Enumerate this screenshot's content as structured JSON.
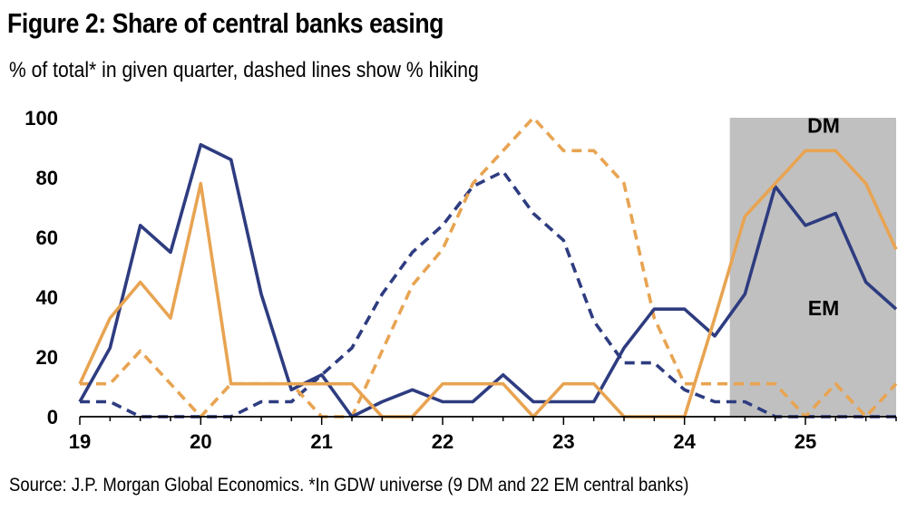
{
  "header": {
    "title": "Figure 2: Share of central banks easing",
    "subtitle": "% of total* in given quarter, dashed lines show % hiking"
  },
  "footer": {
    "source": "Source: J.P. Morgan Global Economics. *In GDW universe (9 DM and 22 EM central banks)"
  },
  "colors": {
    "em": "#2E3C80",
    "dm": "#E8A452",
    "shade": "#C0C0C0"
  },
  "chart_data": {
    "type": "line",
    "title": "Figure 2: Share of central banks easing",
    "subtitle": "% of total* in given quarter, dashed lines show % hiking",
    "xlabel": "",
    "ylabel": "",
    "xlim": [
      19,
      25.75
    ],
    "ylim": [
      0,
      100
    ],
    "x_ticks": [
      19,
      20,
      21,
      22,
      23,
      24,
      25
    ],
    "y_ticks": [
      0,
      20,
      40,
      60,
      80,
      100
    ],
    "grid": false,
    "shaded_region": [
      24.375,
      25.75
    ],
    "x": [
      19.0,
      19.25,
      19.5,
      19.75,
      20.0,
      20.25,
      20.5,
      20.75,
      21.0,
      21.25,
      21.5,
      21.75,
      22.0,
      22.25,
      22.5,
      22.75,
      23.0,
      23.25,
      23.5,
      23.75,
      24.0,
      24.25,
      24.5,
      24.75,
      25.0,
      25.25,
      25.5,
      25.75
    ],
    "series": [
      {
        "name": "EM",
        "style": "solid",
        "color": "#2E3C80",
        "values": [
          5,
          23,
          64,
          55,
          91,
          86,
          41,
          9,
          14,
          0,
          5,
          9,
          5,
          5,
          14,
          5,
          5,
          5,
          23,
          36,
          36,
          27,
          41,
          77,
          64,
          68,
          45,
          36
        ]
      },
      {
        "name": "DM",
        "style": "solid",
        "color": "#E8A452",
        "values": [
          11,
          33,
          45,
          33,
          78,
          11,
          11,
          11,
          11,
          11,
          0,
          0,
          11,
          11,
          11,
          0,
          11,
          11,
          0,
          0,
          0,
          33,
          67,
          78,
          89,
          89,
          78,
          56
        ]
      },
      {
        "name": "EM hiking",
        "style": "dashed",
        "color": "#2E3C80",
        "values": [
          5,
          5,
          0,
          0,
          0,
          0,
          5,
          5,
          14,
          23,
          41,
          55,
          64,
          77,
          82,
          68,
          59,
          32,
          18,
          18,
          9,
          5,
          5,
          0,
          0,
          0,
          0,
          0
        ]
      },
      {
        "name": "DM hiking",
        "style": "dashed",
        "color": "#E8A452",
        "values": [
          11,
          11,
          22,
          11,
          0,
          11,
          11,
          11,
          0,
          0,
          22,
          44,
          56,
          78,
          89,
          100,
          89,
          89,
          78,
          33,
          11,
          11,
          11,
          11,
          0,
          11,
          0,
          11
        ]
      }
    ],
    "annotations": [
      {
        "text": "DM",
        "x": 25.15,
        "y": 95
      },
      {
        "text": "EM",
        "x": 25.15,
        "y": 34
      }
    ]
  }
}
